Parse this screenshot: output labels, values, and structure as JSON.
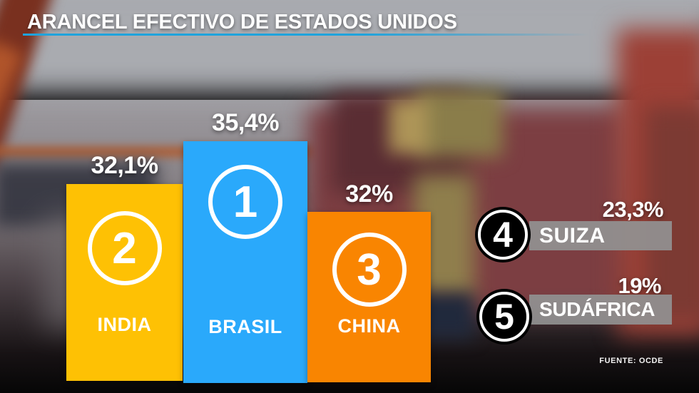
{
  "title": "ARANCEL EFECTIVO DE ESTADOS UNIDOS",
  "source_label": "FUENTE: OCDE",
  "podium": [
    {
      "rank": "2",
      "country": "INDIA",
      "value": "32,1%"
    },
    {
      "rank": "1",
      "country": "BRASIL",
      "value": "35,4%"
    },
    {
      "rank": "3",
      "country": "CHINA",
      "value": "32%"
    }
  ],
  "ranking": [
    {
      "rank": "4",
      "country": "SUIZA",
      "value": "23,3%"
    },
    {
      "rank": "5",
      "country": "SUDÁFRICA",
      "value": "19%"
    }
  ],
  "colors": {
    "india_bar": "#FEC104",
    "brasil_bar": "#2AA9FB",
    "china_bar": "#F98501",
    "accent_underline": "#1FA3DC",
    "ranking_bar": "#919191",
    "badge_background": "#000000",
    "text": "#FFFFFF"
  },
  "chart_data": {
    "type": "bar",
    "title": "ARANCEL EFECTIVO DE ESTADOS UNIDOS",
    "categories": [
      "BRASIL",
      "INDIA",
      "CHINA",
      "SUIZA",
      "SUDÁFRICA"
    ],
    "values": [
      35.4,
      32.1,
      32,
      23.3,
      19
    ],
    "value_labels": [
      "35,4%",
      "32,1%",
      "32%",
      "23,3%",
      "19%"
    ],
    "ranks": [
      1,
      2,
      3,
      4,
      5
    ],
    "unit": "%",
    "layout": "podium top-3 bars (order on screen: INDIA, BRASIL, CHINA) plus side list for ranks 4-5",
    "legend": "none",
    "source": "FUENTE: OCDE"
  }
}
